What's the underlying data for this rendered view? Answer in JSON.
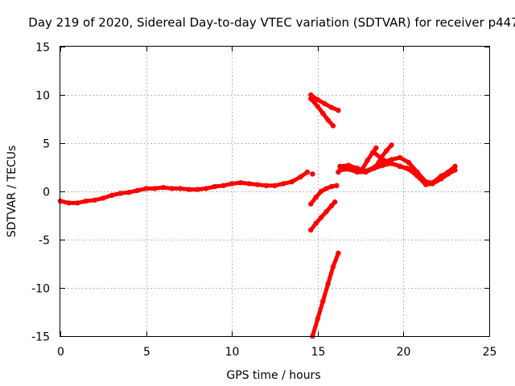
{
  "chart_data": {
    "type": "scatter",
    "title": "Day 219 of 2020, Sidereal Day-to-day VTEC variation (SDTVAR) for receiver p447",
    "xlabel": "GPS time / hours",
    "ylabel": "SDTVAR / TECUs",
    "xlim": [
      0,
      25
    ],
    "ylim": [
      -15,
      15
    ],
    "xticks": [
      0,
      5,
      10,
      15,
      20,
      25
    ],
    "yticks": [
      -15,
      -10,
      -5,
      0,
      5,
      10,
      15
    ],
    "xtick_labels": [
      "0",
      "5",
      "10",
      "15",
      "20",
      "25"
    ],
    "ytick_labels": [
      "-15",
      "-10",
      "-5",
      "0",
      "5",
      "10",
      "15"
    ],
    "grid": true,
    "color": "#ff0000",
    "series": [
      {
        "name": "main-track",
        "x": [
          0,
          0.5,
          1,
          1.5,
          2,
          2.5,
          3,
          3.5,
          4,
          4.5,
          5,
          5.5,
          6,
          6.5,
          7,
          7.5,
          8,
          8.5,
          9,
          9.5,
          10,
          10.5,
          11,
          11.5,
          12,
          12.5,
          13,
          13.5,
          14,
          14.4
        ],
        "y": [
          -1.0,
          -1.2,
          -1.2,
          -1.0,
          -0.9,
          -0.7,
          -0.4,
          -0.2,
          -0.1,
          0.1,
          0.3,
          0.3,
          0.4,
          0.3,
          0.3,
          0.2,
          0.2,
          0.3,
          0.5,
          0.6,
          0.8,
          0.9,
          0.8,
          0.7,
          0.6,
          0.6,
          0.8,
          1.0,
          1.5,
          2.0
        ]
      },
      {
        "name": "arc-a",
        "x": [
          14.6,
          15.0,
          15.4,
          15.8,
          16.2
        ],
        "y": [
          10.0,
          9.5,
          9.1,
          8.7,
          8.4
        ]
      },
      {
        "name": "arc-b",
        "x": [
          14.6,
          15.0,
          15.3,
          15.6,
          15.9
        ],
        "y": [
          9.6,
          8.8,
          8.1,
          7.4,
          6.8
        ]
      },
      {
        "name": "arc-c",
        "x": [
          14.6,
          14.9,
          15.2,
          15.5,
          15.8,
          16.1
        ],
        "y": [
          -1.3,
          -0.6,
          0.0,
          0.3,
          0.5,
          0.6
        ]
      },
      {
        "name": "arc-d",
        "x": [
          14.6,
          14.9,
          15.2,
          15.5,
          15.8,
          16.0
        ],
        "y": [
          -4.0,
          -3.3,
          -2.7,
          -2.1,
          -1.5,
          -1.1
        ]
      },
      {
        "name": "arc-e",
        "x": [
          14.7,
          15.0,
          15.3,
          15.6,
          15.9,
          16.2
        ],
        "y": [
          -15.0,
          -13.2,
          -11.4,
          -9.6,
          -7.8,
          -6.4
        ]
      },
      {
        "name": "dot-a",
        "x": [
          14.7
        ],
        "y": [
          1.8
        ]
      },
      {
        "name": "dot-b",
        "x": [
          16.2
        ],
        "y": [
          2.0
        ]
      },
      {
        "name": "right-track-a",
        "x": [
          16.3,
          16.8,
          17.3,
          17.8,
          18.3,
          18.8,
          19.3,
          19.8,
          20.3,
          20.8,
          21.3,
          21.7,
          22.2,
          22.6,
          23.0
        ],
        "y": [
          2.6,
          2.7,
          2.4,
          2.1,
          2.5,
          3.0,
          3.3,
          3.5,
          3.0,
          2.0,
          1.0,
          0.9,
          1.6,
          2.0,
          2.6
        ]
      },
      {
        "name": "right-track-b",
        "x": [
          16.3,
          16.8,
          17.3,
          17.8,
          18.3,
          18.8,
          19.3,
          19.8,
          20.3,
          20.8,
          21.3,
          21.7,
          22.2,
          22.6,
          23.0
        ],
        "y": [
          2.2,
          2.3,
          2.0,
          2.0,
          2.4,
          2.7,
          2.9,
          2.6,
          2.3,
          1.6,
          0.7,
          0.8,
          1.3,
          1.8,
          2.2
        ]
      },
      {
        "name": "spike-a",
        "x": [
          17.6,
          17.9,
          18.2,
          18.4
        ],
        "y": [
          2.3,
          3.2,
          4.0,
          4.5
        ]
      },
      {
        "name": "spike-b",
        "x": [
          18.4,
          18.7,
          19.0,
          19.3
        ],
        "y": [
          2.6,
          3.5,
          4.2,
          4.8
        ]
      },
      {
        "name": "descent",
        "x": [
          18.3,
          18.8,
          19.3,
          19.8,
          20.2
        ],
        "y": [
          4.0,
          3.3,
          2.9,
          2.6,
          2.4
        ]
      }
    ]
  }
}
